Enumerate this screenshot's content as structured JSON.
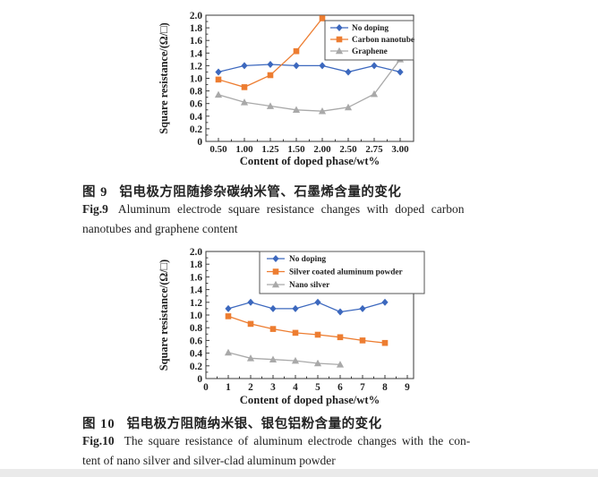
{
  "figures": [
    {
      "caption_zh_label": "图 9",
      "caption_zh_text": "铝电极方阻随掺杂碳纳米管、石墨烯含量的变化",
      "caption_en_label": "Fig.9",
      "caption_en_line1": "Aluminum electrode square resistance changes with doped carbon",
      "caption_en_line2": "nanotubes and graphene content"
    },
    {
      "caption_zh_label": "图 10",
      "caption_zh_text": "铝电极方阻随纳米银、银包铝粉含量的变化",
      "caption_en_label": "Fig.10",
      "caption_en_line1": "The square resistance of aluminum electrode changes with the con-",
      "caption_en_line2": "tent of nano silver and silver-clad aluminum powder"
    }
  ],
  "colors": {
    "no_doping_blue": "#3C68BE",
    "doped_orange": "#ED7D31",
    "doped_gray": "#A9A9A9",
    "axis": "#3a3a3a"
  },
  "chart_data": [
    {
      "type": "line",
      "x_mode": "categorical",
      "categories": [
        "0.50",
        "1.00",
        "1.25",
        "1.50",
        "2.00",
        "2.50",
        "2.75",
        "3.00"
      ],
      "xlabel": "Content of doped phase/wt%",
      "ylabel": "Square resistance/(Ω/□)",
      "ylim": [
        0,
        2.0
      ],
      "ytick_step": 0.2,
      "grid": false,
      "legend_position": "top-right-inside",
      "series": [
        {
          "name": "No doping",
          "color": "#3C68BE",
          "marker": "diamond",
          "values": [
            1.1,
            1.2,
            1.22,
            1.2,
            1.2,
            1.1,
            1.2,
            1.1
          ]
        },
        {
          "name": "Carbon nanotube",
          "color": "#ED7D31",
          "marker": "square",
          "values": [
            0.98,
            0.86,
            1.05,
            1.43,
            1.95,
            null,
            null,
            null
          ]
        },
        {
          "name": "Graphene",
          "color": "#A9A9A9",
          "marker": "triangle",
          "values": [
            0.74,
            0.62,
            0.56,
            0.5,
            0.48,
            0.54,
            0.75,
            1.3
          ]
        }
      ]
    },
    {
      "type": "line",
      "x_mode": "numeric",
      "xlim": [
        0,
        9
      ],
      "xticks": [
        0,
        1,
        2,
        3,
        4,
        5,
        6,
        7,
        8,
        9
      ],
      "xlabel": "Content of doped phase/wt%",
      "ylabel": "Square resistance/(Ω/□)",
      "ylim": [
        0,
        2.0
      ],
      "ytick_step": 0.2,
      "grid": false,
      "legend_position": "top-center-inside",
      "series": [
        {
          "name": "No doping",
          "color": "#3C68BE",
          "marker": "diamond",
          "x": [
            1,
            2,
            3,
            4,
            5,
            6,
            7,
            8
          ],
          "values": [
            1.1,
            1.2,
            1.1,
            1.1,
            1.2,
            1.05,
            1.1,
            1.2
          ]
        },
        {
          "name": "Silver coated aluminum powder",
          "color": "#ED7D31",
          "marker": "square",
          "x": [
            1,
            2,
            3,
            4,
            5,
            6,
            7,
            8
          ],
          "values": [
            0.98,
            0.86,
            0.78,
            0.72,
            0.69,
            0.65,
            0.6,
            0.56
          ]
        },
        {
          "name": "Nano silver",
          "color": "#A9A9A9",
          "marker": "triangle",
          "x": [
            1,
            2,
            3,
            4,
            5,
            6
          ],
          "values": [
            0.41,
            0.32,
            0.3,
            0.28,
            0.24,
            0.22
          ]
        }
      ]
    }
  ]
}
